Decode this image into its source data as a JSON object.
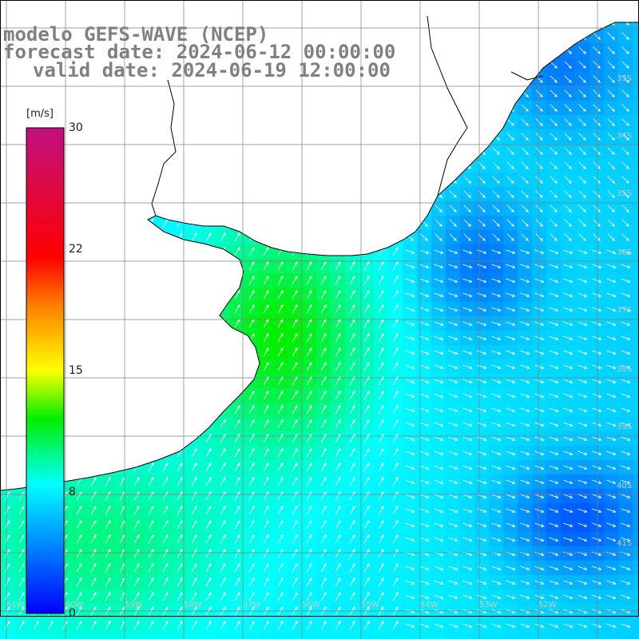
{
  "title": {
    "line1": "modelo GEFS-WAVE (NCEP)",
    "line2": "forecast date: 2024-06-12 00:00:00",
    "line3": "valid date: 2024-06-19 12:00:00"
  },
  "colorbar": {
    "unit": "[m/s]",
    "ticks": [
      "30",
      "22",
      "15",
      "8",
      "0"
    ],
    "stops": [
      {
        "value": 0,
        "color": "#0000ff"
      },
      {
        "value": 8,
        "color": "#00ffff"
      },
      {
        "value": 12,
        "color": "#00ee00"
      },
      {
        "value": 15,
        "color": "#ffff00"
      },
      {
        "value": 19,
        "color": "#ff8000"
      },
      {
        "value": 22,
        "color": "#ff0000"
      },
      {
        "value": 30,
        "color": "#c01080"
      }
    ]
  },
  "map_labels": {
    "latitudes": [
      "33S",
      "34S",
      "35S",
      "36S",
      "37S",
      "38S",
      "39S",
      "40S",
      "41S"
    ],
    "longitudes": [
      "61W",
      "60W",
      "59W",
      "58W",
      "57W",
      "56W",
      "55W",
      "54W",
      "53W",
      "52W"
    ]
  },
  "colors": {
    "land": "#ffffff",
    "coast": "#000000",
    "grid": "#808080",
    "arrow": "#ffffff",
    "title": "#808080"
  }
}
